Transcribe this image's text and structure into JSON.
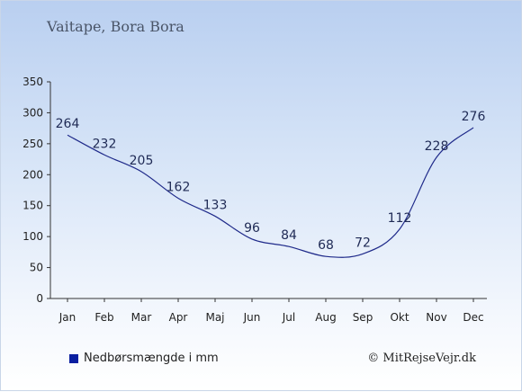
{
  "chart_data": {
    "type": "line",
    "title": "Vaitape, Bora Bora",
    "categories": [
      "Jan",
      "Feb",
      "Mar",
      "Apr",
      "Maj",
      "Jun",
      "Jul",
      "Aug",
      "Sep",
      "Okt",
      "Nov",
      "Dec"
    ],
    "series": [
      {
        "name": "Nedbørsmængde i mm",
        "values": [
          264,
          232,
          205,
          162,
          133,
          96,
          84,
          68,
          72,
          112,
          228,
          276
        ]
      }
    ],
    "ylim": [
      0,
      350
    ],
    "yticks": [
      0,
      50,
      100,
      150,
      200,
      250,
      300,
      350
    ],
    "grid": false,
    "legend_position": "bottom-left"
  },
  "legend": {
    "label": "Nedbørsmængde i mm"
  },
  "credit": "© MitRejseVejr.dk",
  "colors": {
    "line": "#1f2a8a",
    "label": "#1f2a55",
    "swatch": "#0a1fa0"
  }
}
